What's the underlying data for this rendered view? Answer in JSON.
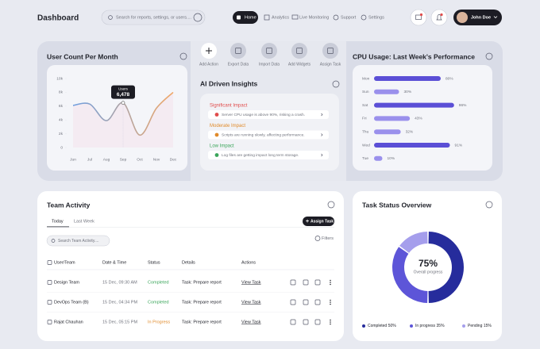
{
  "header": {
    "title": "Dashboard",
    "search_placeholder": "Search for reports, settings, or users....",
    "nav": [
      "Home",
      "Analytics",
      "Live Monitoring",
      "Support",
      "Settings"
    ],
    "user": "John Doe"
  },
  "user_count": {
    "type": "line",
    "title": "User Count Per Month",
    "categories": [
      "Jun",
      "Jul",
      "Aug",
      "Sep",
      "Oct",
      "Nov",
      "Dec"
    ],
    "values": [
      6100,
      6300,
      3900,
      6478,
      1800,
      5700,
      8000
    ],
    "value_labels": [
      null,
      null,
      null,
      "6,478",
      null,
      null,
      null
    ],
    "tooltip_title": "Users",
    "ylim": [
      0,
      10000
    ],
    "yticks": [
      0,
      {
        "value": 2000,
        "label": "2k"
      },
      {
        "value": 4000,
        "label": "4k"
      },
      {
        "value": 6000,
        "label": "6k"
      },
      {
        "value": 8000,
        "label": "8k"
      },
      {
        "value": 10000,
        "label": "10k"
      }
    ],
    "colors": [
      "#6f9fe0",
      "#f0a868"
    ]
  },
  "actions": [
    "Add Action",
    "Export Data",
    "Import Data",
    "Add Widgets",
    "Assign Task"
  ],
  "insights": {
    "title": "AI Driven Insights",
    "items": [
      {
        "level": "Significant Impact",
        "text": "Server CPU usage is above 90%, risking a crash."
      },
      {
        "level": "Moderate Impact",
        "text": "Scripts are running slowly, affecting performance."
      },
      {
        "level": "Low Impact",
        "text": "Log files are getting  impact long term storage."
      }
    ]
  },
  "cpu_usage": {
    "type": "bar",
    "orientation": "horizontal",
    "title": "CPU Usage: Last Week's Performance",
    "categories": [
      "Mon",
      "Sun",
      "Sat",
      "Fri",
      "Thu",
      "Wed",
      "Tue"
    ],
    "values": [
      80,
      30,
      96,
      43,
      32,
      91,
      10
    ],
    "value_labels": [
      "80%",
      "30%",
      "96%",
      "43%",
      "32%",
      "91%",
      "10%"
    ],
    "xlim": [
      0,
      100
    ],
    "colors": [
      "#5b4fd6",
      "#9a90ec",
      "#5b4fd6",
      "#9a90ec",
      "#9a90ec",
      "#5b4fd6",
      "#9a90ec"
    ]
  },
  "team_activity": {
    "title": "Team Activity",
    "tabs": [
      "Today",
      "Last Week"
    ],
    "button": "Assign Task",
    "search_placeholder": "Search Team Activity....",
    "filters": "Filters",
    "columns": [
      "User/Team",
      "Date & Time",
      "Status",
      "Details",
      "Actions"
    ],
    "rows": [
      [
        "Design Team",
        "15 Dec, 09:30 AM",
        "Completed",
        "Task: Prepare report",
        "View Task"
      ],
      [
        "DevOps Team (B)",
        "15 Dec, 04:34 PM",
        "Completed",
        "Task: Prepare report",
        "View Task"
      ],
      [
        "Rajat Chauhan",
        "15 Dec, 05:15 PM",
        "In Progress",
        "Task: Prepare report",
        "View Task"
      ]
    ]
  },
  "task_status": {
    "type": "donut",
    "title": "Task Status Overview",
    "categories": [
      "Completed",
      "In progress",
      "Pending"
    ],
    "values": [
      50,
      35,
      15
    ],
    "value_labels": [
      "50%",
      "35%",
      "15%"
    ],
    "colors": [
      "#262c9c",
      "#5d55d8",
      "#a59eec"
    ],
    "center_value": "75%",
    "center_label": "Overall progress"
  }
}
